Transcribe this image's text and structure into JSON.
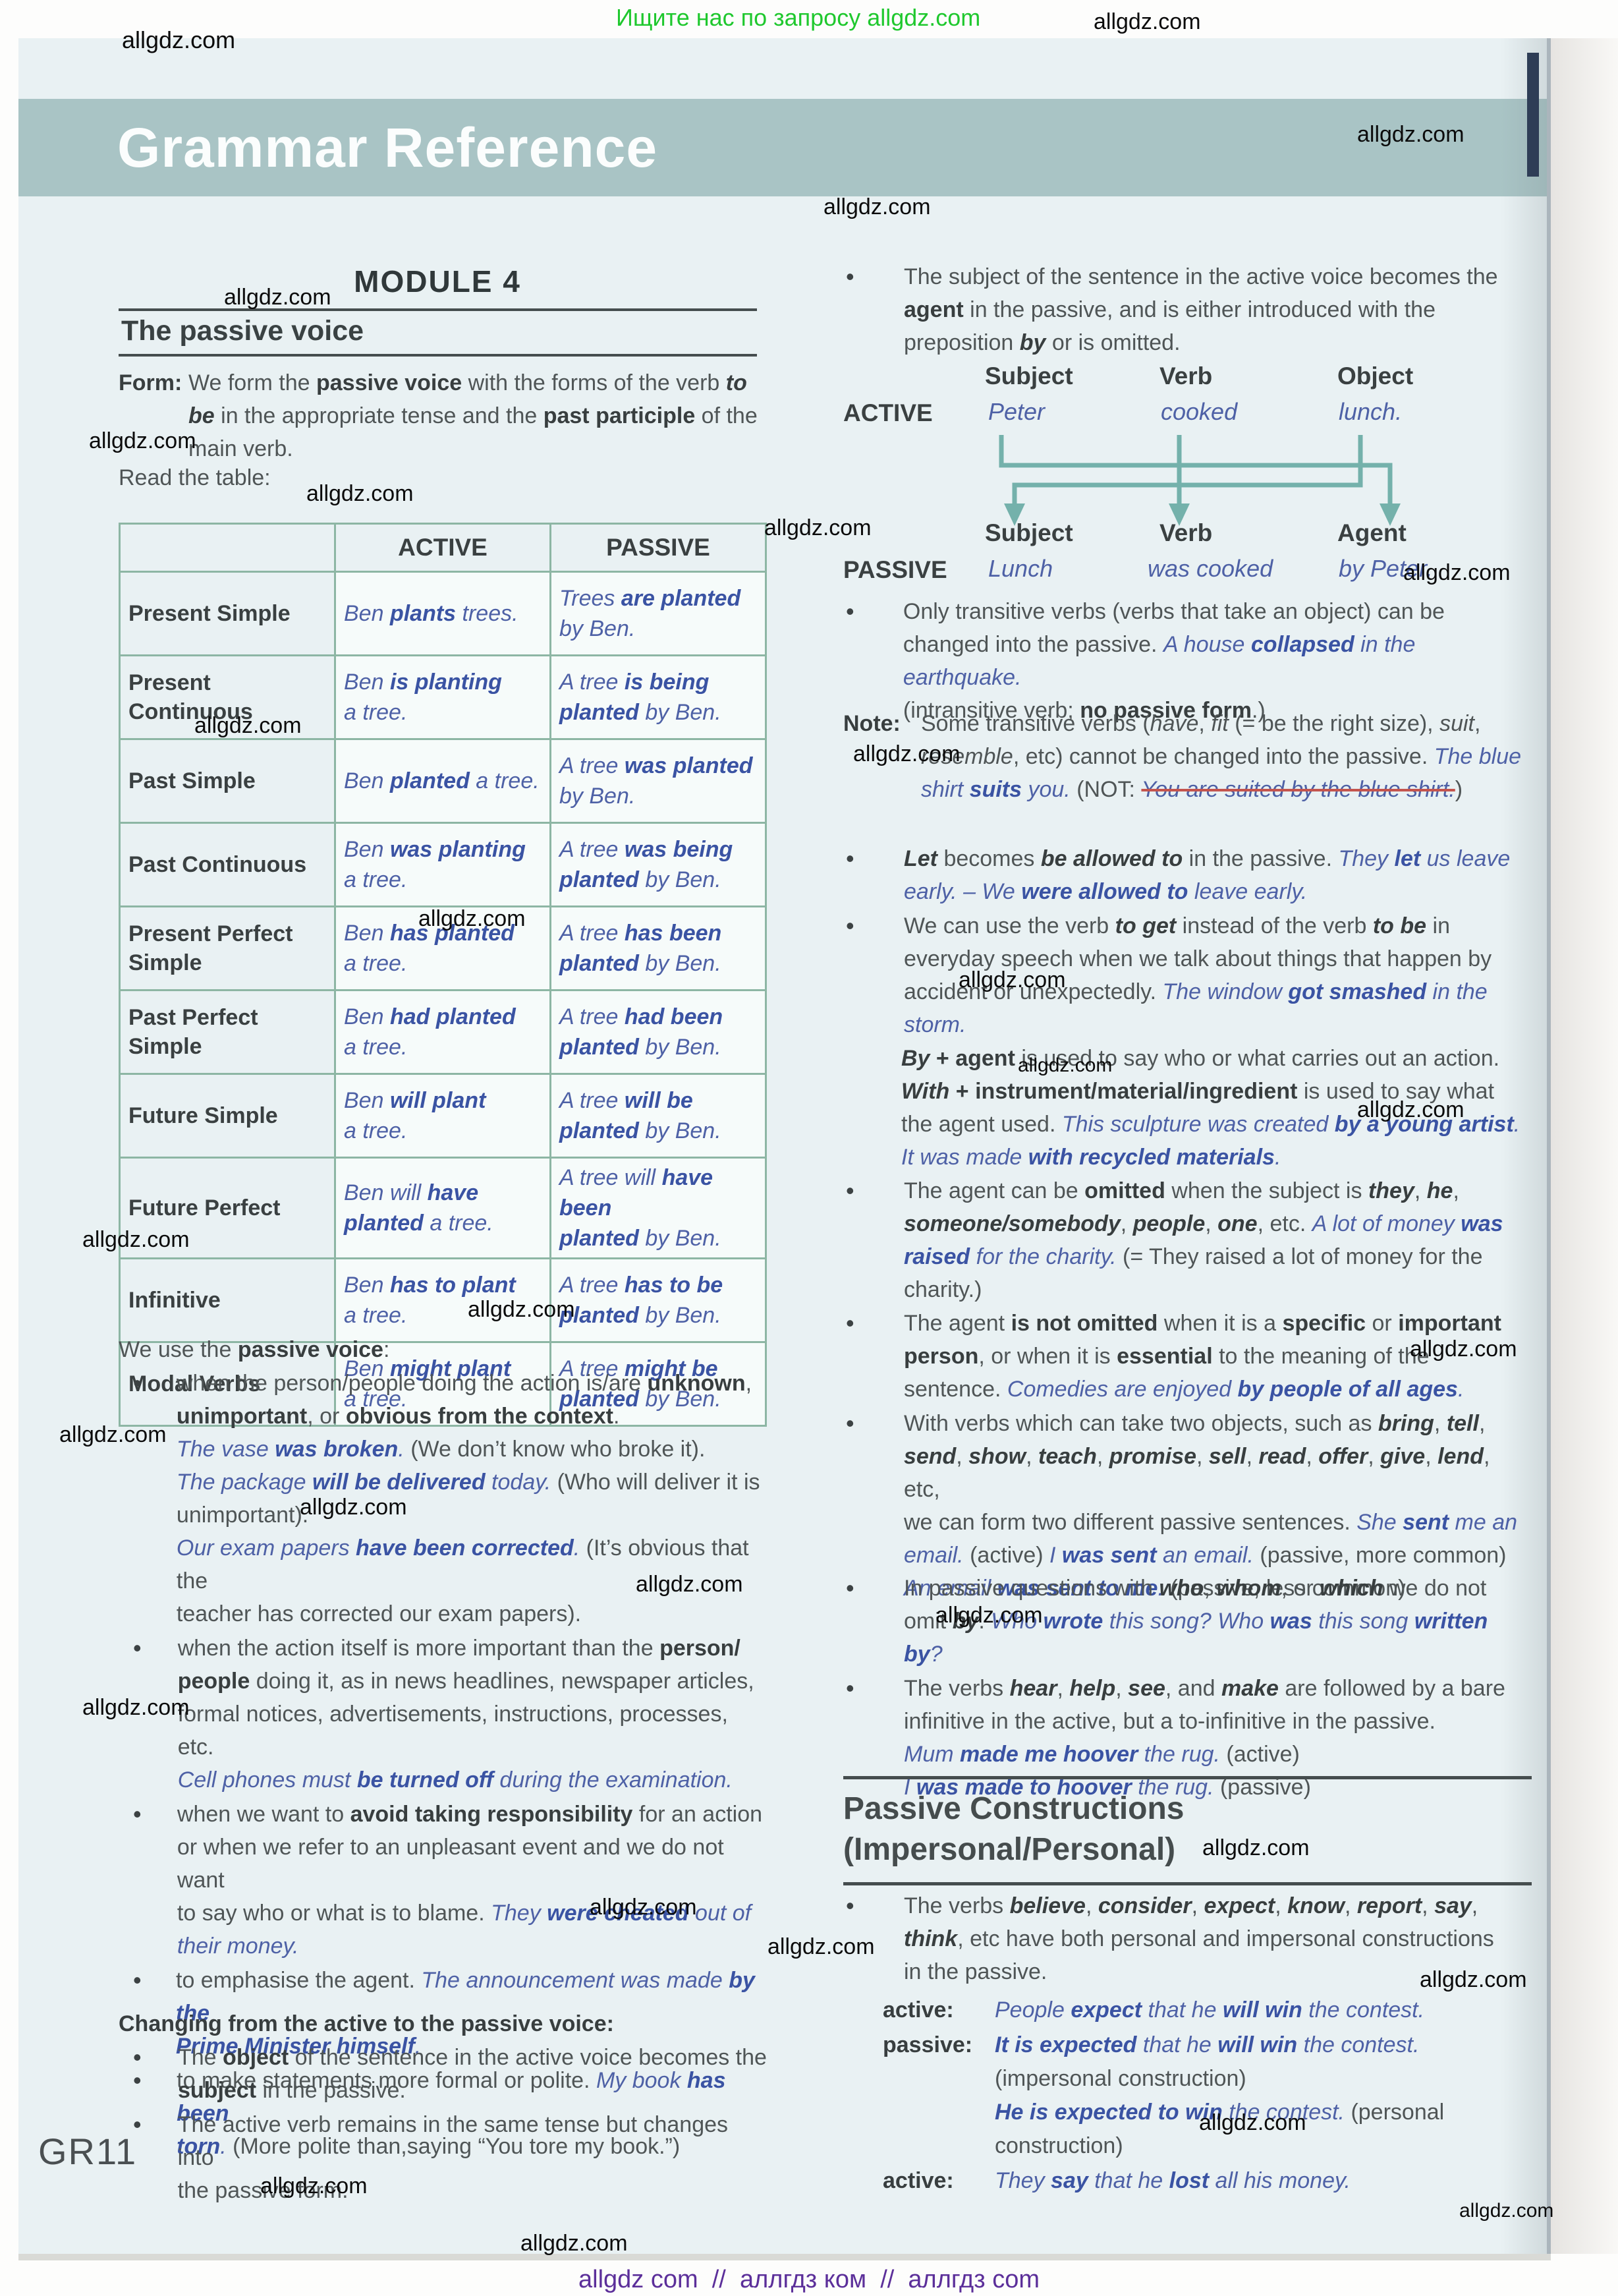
{
  "page": {
    "top_banner": "Ищите нас по запросу allgdz.com",
    "footer": "allgdz com  //  аллгдз ком  //  аллгдз com",
    "page_number": "GR11",
    "header_title": "Grammar Reference",
    "watermark": "allgdz.com",
    "watermarks": [
      [
        185,
        40,
        36
      ],
      [
        1660,
        14,
        34
      ],
      [
        2060,
        185,
        34
      ],
      [
        1250,
        295,
        34
      ],
      [
        340,
        432,
        34
      ],
      [
        135,
        650,
        34
      ],
      [
        465,
        730,
        34
      ],
      [
        1160,
        782,
        34
      ],
      [
        2130,
        850,
        34
      ],
      [
        295,
        1082,
        34
      ],
      [
        1295,
        1125,
        34
      ],
      [
        635,
        1375,
        34
      ],
      [
        1455,
        1468,
        34
      ],
      [
        1545,
        1600,
        30
      ],
      [
        2060,
        1665,
        34
      ],
      [
        125,
        1862,
        34
      ],
      [
        710,
        1968,
        34
      ],
      [
        2140,
        2028,
        34
      ],
      [
        90,
        2158,
        34
      ],
      [
        455,
        2268,
        34
      ],
      [
        965,
        2385,
        34
      ],
      [
        1420,
        2432,
        34
      ],
      [
        125,
        2572,
        34
      ],
      [
        895,
        2875,
        34
      ],
      [
        1825,
        2785,
        34
      ],
      [
        1165,
        2935,
        34
      ],
      [
        2155,
        2985,
        34
      ],
      [
        1820,
        3202,
        34
      ],
      [
        395,
        3298,
        34
      ],
      [
        2215,
        3338,
        30
      ],
      [
        790,
        3385,
        34
      ]
    ]
  },
  "colors": {
    "header_band": "#a9c4c5",
    "example_blue": "#4e61a6",
    "example_blue_bold": "#3a53a3",
    "strike_red": "#c4554e",
    "arrow_teal": "#74b1ab",
    "banner_green": "#1fc82e",
    "footer_purple": "#5c2f9a",
    "table_border": "#8db6a4",
    "page_bg": "#e9f1f3"
  },
  "left": {
    "module_title": "MODULE 4",
    "section_title": "The passive voice",
    "form_label": "Form:",
    "form_text": "We form the **passive voice** with the forms of the verb ^^to^^\n^^be^^ in the appropriate tense and the **past participle** of the\nmain verb.",
    "read_table": "Read the table:",
    "table": {
      "headers": [
        "ACTIVE",
        "PASSIVE"
      ],
      "rows": [
        {
          "tense": "Present Simple",
          "active": "Ben **plants** trees.",
          "passive": "Trees **are planted**\nby Ben."
        },
        {
          "tense": "Present\nContinuous",
          "active": "Ben **is planting**\na tree.",
          "passive": "A tree **is being**\n**planted** by Ben."
        },
        {
          "tense": "Past Simple",
          "active": "Ben **planted** a tree.",
          "passive": "A tree **was planted**\nby Ben."
        },
        {
          "tense": "Past Continuous",
          "active": "Ben **was planting**\na tree.",
          "passive": "A tree **was being**\n**planted** by Ben."
        },
        {
          "tense": "Present Perfect\nSimple",
          "active": "Ben **has planted**\na tree.",
          "passive": "A tree **has been**\n**planted** by Ben."
        },
        {
          "tense": "Past Perfect\nSimple",
          "active": "Ben **had planted**\na tree.",
          "passive": "A tree **had been**\n**planted** by Ben."
        },
        {
          "tense": "Future Simple",
          "active": "Ben **will plant**\na tree.",
          "passive": "A tree **will be**\n**planted** by Ben."
        },
        {
          "tense": "Future Perfect",
          "active": "Ben will **have**\n**planted** a tree.",
          "passive": "A tree will **have been**\n**planted** by Ben."
        },
        {
          "tense": "Infinitive",
          "active": "Ben **has to plant**\na tree.",
          "passive": "A tree **has to be**\n**planted** by Ben."
        },
        {
          "tense": "Modal Verbs",
          "active": "Ben **might plant**\na tree.",
          "passive": "A tree **might be**\n**planted** by Ben."
        }
      ]
    },
    "use_title": "We use the **passive voice**:",
    "use_bullets": [
      "when the person/people doing the action is/are **unknown**,\n**unimportant**, or **obvious from the context**.\n[[The vase **was broken**.]] (We don’t know who broke it).\n[[The package **will be delivered** today.]] (Who will deliver it is\nunimportant).\n[[Our exam papers **have been corrected**.]] (It’s obvious that the\nteacher has corrected our exam papers).",
      "when the action itself is more important than the **person/**\n**people** doing it, as in news headlines, newspaper articles,\nformal notices, advertisements, instructions, processes, etc.\n[[Cell phones must **be turned off** during the examination.]]",
      "when we want to **avoid taking responsibility** for an action\nor when we refer to an unpleasant event and we do not want\nto say who or what is to blame. [[They **were cheated** out of\ntheir money.]]",
      "to emphasise the agent. [[The announcement was made **by the**\n**Prime Minister himself**.]]",
      "to make statements more formal or polite. [[My book **has been**\n**torn**.]] (More polite than,saying “You tore my book.”)"
    ],
    "changing_title": "Changing from the active to the passive voice:",
    "changing_bullets": [
      "The **object** of the sentence in the active voice becomes the\n**subject** in the passive.",
      "The active verb remains in the same tense but changes into\nthe passive form."
    ]
  },
  "right": {
    "subject_bullet": "The subject of the sentence in the active voice becomes the\n**agent** in the passive, and is either introduced with the\npreposition ^^by^^ or is omitted.",
    "diagram": {
      "active_label": "ACTIVE",
      "passive_label": "PASSIVE",
      "active_headers": [
        "Subject",
        "Verb",
        "Object"
      ],
      "active_row": [
        "Peter",
        "cooked",
        "lunch."
      ],
      "passive_headers": [
        "Subject",
        "Verb",
        "Agent"
      ],
      "passive_row": [
        "Lunch",
        "was cooked",
        "by Peter."
      ]
    },
    "transitive_bullet": "Only transitive verbs (verbs that take an object) can be\nchanged into the passive. [[A house **collapsed** in the earthquake.]]\n(intransitive verb; **no passive form**.)",
    "note_label": "Note:",
    "note_text": "Some transitive verbs (//have//, //fit// (= be the right size), //suit//,\n//resemble//, etc) cannot be changed into the passive. [[The blue\nshirt **suits** you.]] (NOT: ~~You are suited by the blue shirt.~~)",
    "let_bullet": "^^Let^^ becomes ^^be allowed to^^ in the passive. [[They **let** us leave\nearly. – We **were allowed to** leave early.]]",
    "get_bullet": "We can use the verb ^^to get^^ instead of the verb ^^to be^^ in\neveryday speech when we talk about things that happen by\naccident or unexpectedly. [[The window **got smashed** in the\nstorm.]]",
    "by_agent_para": "^^By^^ **+ agent** is used to say who or what carries out an action.\n^^With^^ **+ instrument/material/ingredient** is used to say what\nthe agent used. [[This sculpture was created **by a young artist**.]]\n[[It was made **with recycled materials**.]]",
    "omitted_bullet": "The agent can be **omitted** when the subject is ^^they^^, ^^he^^,\n^^someone/somebody^^, ^^people^^, ^^one^^, etc. [[A lot of money **was**\n**raised** for the charity.]] (= They raised a lot of money for the\ncharity.)",
    "not_omitted_bullet": "The agent **is not omitted** when it is a **specific** or **important**\n**person**, or when it is **essential** to the meaning of the\nsentence. [[Comedies are enjoyed **by people of all ages**.]]",
    "two_objects_bullet": "With verbs which can take two objects, such as ^^bring^^, ^^tell^^,\n^^send^^, ^^show^^, ^^teach^^, ^^promise^^, ^^sell^^, ^^read^^, ^^offer^^, ^^give^^, ^^lend^^, etc,\nwe can form two different passive sentences. [[She **sent** me an\nemail.]] (active) [[I **was sent** an email.]] (passive, more common)\n[[An email **was sent to me**.]] (passive, less common)",
    "questions_bullet": "In passive questions with ^^who^^, ^^whom^^, or ^^which^^ we do not\nomit ^^by^^. [[Who **wrote** this song? Who **was** this song **written**\n**by**?]]",
    "bare_infinitive_bullet": "The verbs ^^hear^^, ^^help^^, ^^see^^, and ^^make^^ are followed by a bare\ninfinitive in the active, but a to-infinitive in the passive.\n[[Mum **made me hoover** the rug.]] (active)\n[[I **was made to hoover** the rug.]] (passive)",
    "pc_title_line1": "Passive Constructions",
    "pc_title_line2": "(Impersonal/Personal)",
    "pc_bullet": "The verbs ^^believe^^, ^^consider^^, ^^expect^^, ^^know^^, ^^report^^, ^^say^^,\n^^think^^, etc have both personal and impersonal constructions\nin the passive.",
    "pc_rows": [
      {
        "label": "active:",
        "text": "[[People **expect** that he **will win** the contest.]]"
      },
      {
        "label": "passive:",
        "text": "[[**It is expected** that he **will win** the contest.]]\n(impersonal construction)\n[[**He is expected to win** the contest.]] (personal\nconstruction)"
      },
      {
        "label": "active:",
        "text": "[[They **say** that he **lost** all his money.]]"
      }
    ]
  }
}
